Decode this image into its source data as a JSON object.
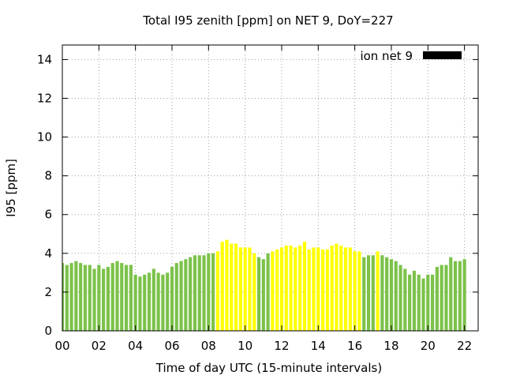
{
  "chart_data": {
    "type": "bar",
    "title": "Total I95 zenith [ppm] on NET 9, DoY=227",
    "xlabel": "Time of day UTC (15-minute intervals)",
    "ylabel": "I95 [ppm]",
    "ylim": [
      0,
      14.75
    ],
    "xlim": [
      0,
      22.75
    ],
    "y_ticks": [
      "0",
      "2",
      "4",
      "6",
      "8",
      "10",
      "12",
      "14"
    ],
    "x_ticks": [
      "00",
      "02",
      "04",
      "06",
      "08",
      "10",
      "12",
      "14",
      "16",
      "18",
      "20",
      "22"
    ],
    "grid": true,
    "legend": {
      "label": "ion net 9",
      "position": "top-right",
      "color": "#000000"
    },
    "colors": {
      "green": "#7cc24a",
      "yellow": "#ffff00"
    },
    "interval_hours": 0.25,
    "values": [
      3.5,
      3.4,
      3.5,
      3.6,
      3.5,
      3.4,
      3.4,
      3.2,
      3.4,
      3.2,
      3.3,
      3.5,
      3.6,
      3.5,
      3.4,
      3.4,
      2.9,
      2.8,
      2.9,
      3.0,
      3.2,
      3.0,
      2.9,
      3.0,
      3.3,
      3.5,
      3.6,
      3.7,
      3.8,
      3.9,
      3.9,
      3.9,
      4.0,
      4.0,
      4.1,
      4.6,
      4.7,
      4.5,
      4.5,
      4.3,
      4.3,
      4.3,
      4.0,
      3.8,
      3.7,
      4.0,
      4.1,
      4.2,
      4.3,
      4.4,
      4.4,
      4.3,
      4.4,
      4.6,
      4.2,
      4.3,
      4.3,
      4.2,
      4.2,
      4.4,
      4.5,
      4.4,
      4.3,
      4.3,
      4.1,
      4.1,
      3.8,
      3.9,
      3.9,
      4.1,
      3.9,
      3.8,
      3.7,
      3.6,
      3.4,
      3.2,
      2.9,
      3.1,
      2.9,
      2.7,
      2.9,
      2.9,
      3.3,
      3.4,
      3.4,
      3.8,
      3.6,
      3.6,
      3.7
    ],
    "bar_colors": [
      "green",
      "green",
      "green",
      "green",
      "green",
      "green",
      "green",
      "green",
      "green",
      "green",
      "green",
      "green",
      "green",
      "green",
      "green",
      "green",
      "green",
      "green",
      "green",
      "green",
      "green",
      "green",
      "green",
      "green",
      "green",
      "green",
      "green",
      "green",
      "green",
      "green",
      "green",
      "green",
      "green",
      "green",
      "yellow",
      "yellow",
      "yellow",
      "yellow",
      "yellow",
      "yellow",
      "yellow",
      "yellow",
      "yellow",
      "green",
      "green",
      "green",
      "yellow",
      "yellow",
      "yellow",
      "yellow",
      "yellow",
      "yellow",
      "yellow",
      "yellow",
      "yellow",
      "yellow",
      "yellow",
      "yellow",
      "yellow",
      "yellow",
      "yellow",
      "yellow",
      "yellow",
      "yellow",
      "yellow",
      "yellow",
      "green",
      "green",
      "green",
      "yellow",
      "green",
      "green",
      "green",
      "green",
      "green",
      "green",
      "green",
      "green",
      "green",
      "green",
      "green",
      "green",
      "green",
      "green",
      "green",
      "green",
      "green",
      "green",
      "green"
    ]
  }
}
